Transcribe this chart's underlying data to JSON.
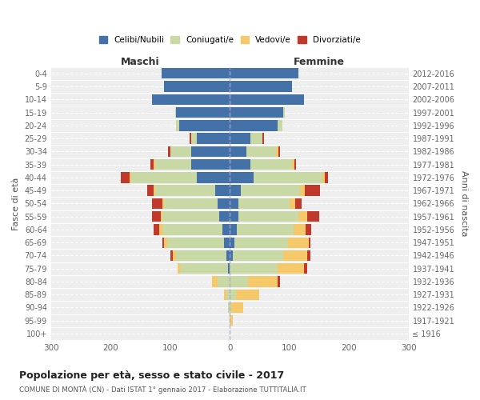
{
  "age_groups": [
    "0-4",
    "5-9",
    "10-14",
    "15-19",
    "20-24",
    "25-29",
    "30-34",
    "35-39",
    "40-44",
    "45-49",
    "50-54",
    "55-59",
    "60-64",
    "65-69",
    "70-74",
    "75-79",
    "80-84",
    "85-89",
    "90-94",
    "95-99",
    "100+"
  ],
  "birth_years": [
    "2012-2016",
    "2007-2011",
    "2002-2006",
    "1997-2001",
    "1992-1996",
    "1987-1991",
    "1982-1986",
    "1977-1981",
    "1972-1976",
    "1967-1971",
    "1962-1966",
    "1957-1961",
    "1952-1956",
    "1947-1951",
    "1942-1946",
    "1937-1941",
    "1932-1936",
    "1927-1931",
    "1922-1926",
    "1917-1921",
    "≤ 1916"
  ],
  "maschi": {
    "celibi": [
      115,
      110,
      130,
      90,
      85,
      55,
      65,
      65,
      55,
      25,
      20,
      18,
      13,
      10,
      5,
      3,
      0,
      0,
      0,
      0,
      0
    ],
    "coniugati": [
      0,
      0,
      0,
      2,
      5,
      10,
      35,
      60,
      110,
      100,
      90,
      95,
      100,
      95,
      85,
      80,
      20,
      5,
      3,
      0,
      0
    ],
    "vedovi": [
      0,
      0,
      0,
      0,
      0,
      0,
      0,
      3,
      3,
      3,
      3,
      3,
      5,
      5,
      5,
      5,
      10,
      5,
      0,
      0,
      0
    ],
    "divorziati": [
      0,
      0,
      0,
      0,
      0,
      3,
      3,
      5,
      15,
      10,
      18,
      15,
      10,
      3,
      5,
      0,
      0,
      0,
      0,
      0,
      0
    ]
  },
  "femmine": {
    "nubili": [
      115,
      105,
      125,
      90,
      80,
      35,
      28,
      35,
      40,
      18,
      15,
      15,
      12,
      8,
      5,
      0,
      0,
      0,
      0,
      0,
      0
    ],
    "coniugate": [
      0,
      0,
      0,
      2,
      8,
      20,
      50,
      70,
      115,
      100,
      85,
      100,
      95,
      90,
      85,
      80,
      30,
      10,
      3,
      0,
      0
    ],
    "vedove": [
      0,
      0,
      0,
      0,
      0,
      0,
      3,
      3,
      5,
      8,
      10,
      15,
      20,
      35,
      40,
      45,
      50,
      40,
      20,
      5,
      0
    ],
    "divorziate": [
      0,
      0,
      0,
      0,
      0,
      3,
      3,
      3,
      5,
      25,
      10,
      20,
      10,
      3,
      5,
      5,
      5,
      0,
      0,
      0,
      0
    ]
  },
  "colors": {
    "celibi": "#4472a8",
    "coniugati": "#c8d9a5",
    "vedovi": "#f5c96a",
    "divorziati": "#c0392b"
  },
  "xlim": 300,
  "title": "Popolazione per età, sesso e stato civile - 2017",
  "subtitle": "COMUNE DI MONTÀ (CN) - Dati ISTAT 1° gennaio 2017 - Elaborazione TUTTITALIA.IT",
  "maschi_label": "Maschi",
  "femmine_label": "Femmine",
  "ylabel": "Fasce di età",
  "ylabel_right": "Anni di nascita",
  "legend_labels": [
    "Celibi/Nubili",
    "Coniugati/e",
    "Vedovi/e",
    "Divorziati/e"
  ]
}
